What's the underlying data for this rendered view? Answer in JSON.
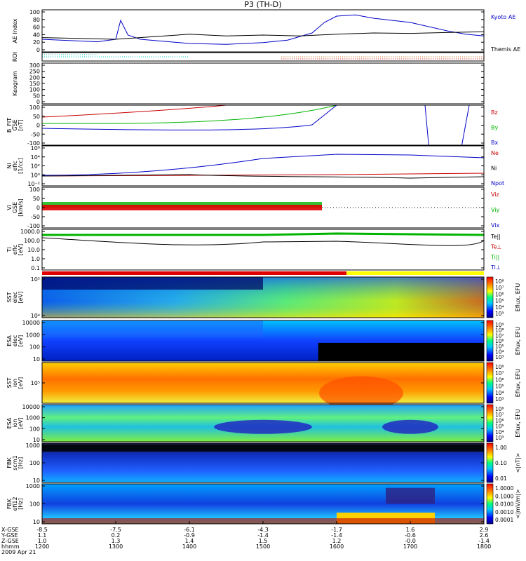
{
  "chart_data": {
    "type": "line",
    "title": "P3 (TH-D)",
    "panels": [
      {
        "id": "ae",
        "ylabel": "AE Index",
        "yticks": [
          "100",
          "80",
          "60",
          "40",
          "20",
          "0"
        ],
        "legend": [
          {
            "label": "Kyoto AE",
            "color": "#0000c8"
          },
          {
            "label": "Themis AE",
            "color": "#000000"
          }
        ],
        "series": [
          {
            "name": "Kyoto AE",
            "x": [
              1200,
              1215,
              1230,
              1245,
              1300,
              1304,
              1310,
              1320,
              1340,
              1400,
              1430,
              1500,
              1520,
              1540,
              1550,
              1600,
              1615,
              1630,
              1700,
              1730,
              1745,
              1800
            ],
            "y": [
              30,
              28,
              26,
              24,
              30,
              75,
              40,
              30,
              25,
              20,
              18,
              22,
              28,
              45,
              70,
              85,
              88,
              80,
              70,
              50,
              42,
              38
            ]
          },
          {
            "name": "Themis AE",
            "x": [
              1200,
              1230,
              1300,
              1330,
              1400,
              1430,
              1500,
              1530,
              1600,
              1630,
              1700,
              1730,
              1800
            ],
            "y": [
              34,
              32,
              30,
              36,
              42,
              38,
              40,
              38,
              42,
              45,
              44,
              46,
              48
            ]
          }
        ]
      },
      {
        "id": "roi",
        "ylabel": "ROI",
        "yticks": []
      },
      {
        "id": "keogram",
        "ylabel": "Keogram",
        "yticks": [
          "300",
          "250",
          "200",
          "150",
          "100",
          "50",
          "0"
        ]
      },
      {
        "id": "bfit",
        "ylabel": "B_FIT\nGSE\n[nT]",
        "yticks": [
          "100",
          "50",
          "0",
          "-50",
          "-100"
        ],
        "legend": [
          {
            "label": "Bz",
            "color": "#c80000"
          },
          {
            "label": "By",
            "color": "#00b400"
          },
          {
            "label": "Bx",
            "color": "#0000c8"
          }
        ]
      },
      {
        "id": "ni",
        "ylabel": "Ni\neflc\n[1/cc]",
        "yticks": [
          "10⁶",
          "10⁴",
          "10²",
          "10⁰",
          "10⁻²"
        ],
        "legend": [
          {
            "label": "Ne",
            "color": "#c80000"
          },
          {
            "label": "Ni",
            "color": "#000000"
          },
          {
            "label": "Npot",
            "color": "#0000c8"
          }
        ]
      },
      {
        "id": "vi",
        "ylabel": "Vi\nGSE\n[km/s]",
        "yticks": [
          "100",
          "50",
          "0",
          "-50",
          "-100"
        ],
        "legend": [
          {
            "label": "Viz",
            "color": "#c80000"
          },
          {
            "label": "Viy",
            "color": "#00b400"
          },
          {
            "label": "Vix",
            "color": "#0000c8"
          }
        ]
      },
      {
        "id": "ti",
        "ylabel": "Ti\neflc\n[eV]",
        "yticks": [
          "1000.0",
          "100.0",
          "10.0",
          "1.0",
          "0.1"
        ],
        "legend": [
          {
            "label": "Te||",
            "color": "#000000"
          },
          {
            "label": "Te⊥",
            "color": "#c80000"
          },
          {
            "label": "Ti||",
            "color": "#00b400"
          },
          {
            "label": "Ti⊥",
            "color": "#0000c8"
          }
        ]
      },
      {
        "id": "sst_e",
        "ylabel": "SST\nelec\n[eV]",
        "yticks": [
          "10⁵",
          "10⁴"
        ],
        "cbar": "Eflux, EFU",
        "cticks": [
          "10⁸",
          "10⁷",
          "10⁶",
          "10⁵",
          "10⁴",
          "10³"
        ]
      },
      {
        "id": "esa_e",
        "ylabel": "ESA\nelec\n[eV]",
        "yticks": [
          "10000",
          "1000",
          "100",
          "10"
        ],
        "cbar": "Eflux, EFU",
        "cticks": [
          "10⁹",
          "10⁸",
          "10⁷",
          "10⁶",
          "10⁵",
          "10⁴",
          "10³"
        ]
      },
      {
        "id": "sst_i",
        "ylabel": "SST\nion\n[eV]",
        "yticks": [
          "10⁵"
        ],
        "cbar": "Eflux, EFU",
        "cticks": [
          "10⁸",
          "10⁷",
          "10⁶",
          "10⁵",
          "10⁴",
          "10³"
        ]
      },
      {
        "id": "esa_i",
        "ylabel": "ESA\nion\n[eV]",
        "yticks": [
          "10000",
          "1000",
          "100",
          "10"
        ],
        "cbar": "Eflux, EFU",
        "cticks": [
          "10⁸",
          "10⁷",
          "10⁶",
          "10⁵",
          "10⁴",
          "10³"
        ]
      },
      {
        "id": "fbk_b",
        "ylabel": "FBK\nscm1\n[Hz]",
        "yticks": [
          "1000",
          "100",
          "10"
        ],
        "cbar": "<|nT|>",
        "cticks": [
          "1.00",
          "0.10",
          "0.01"
        ]
      },
      {
        "id": "fbk_e",
        "ylabel": "FBK\nefi12\n[Hz]",
        "yticks": [
          "1000",
          "100",
          "10"
        ],
        "cbar": "<|mV/m|>",
        "cticks": [
          "1.0000",
          "0.1000",
          "0.0100",
          "0.0010",
          "0.0001"
        ]
      }
    ],
    "xaxis": {
      "row_labels": [
        "X-GSE",
        "Y-GSE",
        "Z-GSE",
        "hhmm"
      ],
      "ticks": [
        {
          "x": "-8.5",
          "y": "1.1",
          "z": "1.0",
          "t": "1200"
        },
        {
          "x": "-7.5",
          "y": "0.2",
          "z": "1.3",
          "t": "1300"
        },
        {
          "x": "-6.1",
          "y": "-0.9",
          "z": "1.4",
          "t": "1400"
        },
        {
          "x": "-4.3",
          "y": "-1.4",
          "z": "1.5",
          "t": "1500"
        },
        {
          "x": "-1.7",
          "y": "-1.4",
          "z": "1.2",
          "t": "1600"
        },
        {
          "x": "1.6",
          "y": "-0.6",
          "z": "-0.0",
          "t": "1700"
        },
        {
          "x": "2.9",
          "y": "2.6",
          "z": "-1.4",
          "t": "1800"
        }
      ],
      "date": "2009 Apr 21"
    },
    "colors": {
      "accent": "#0000c8",
      "axis": "#000000"
    }
  }
}
